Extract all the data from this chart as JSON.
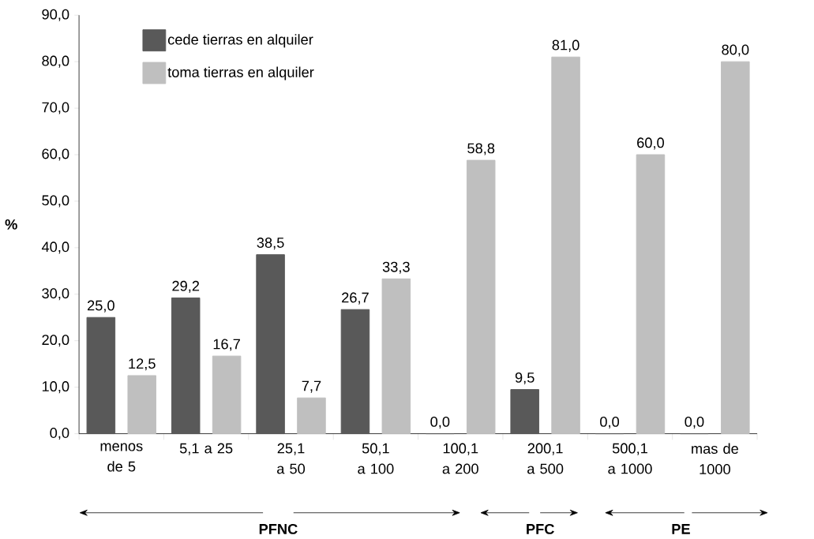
{
  "chart_data": {
    "type": "bar",
    "ylabel": "%",
    "categories": [
      "menos de 5",
      "5,1 a 25",
      "25,1 a 50",
      "50,1 a 100",
      "100,1 a 200",
      "200,1 a 500",
      "500,1 a 1000",
      "mas de 1000"
    ],
    "series": [
      {
        "name": "cede tierras en alquiler",
        "color": "#595959",
        "values": [
          25.0,
          29.2,
          38.5,
          26.7,
          0.0,
          9.5,
          0.0,
          0.0
        ],
        "value_labels": [
          "25,0",
          "29,2",
          "38,5",
          "26,7",
          "0,0",
          "9,5",
          "0,0",
          "0,0"
        ]
      },
      {
        "name": "toma tierras en alquiler",
        "color": "#bfbfbf",
        "values": [
          12.5,
          16.7,
          7.7,
          33.3,
          58.8,
          81.0,
          60.0,
          80.0
        ],
        "value_labels": [
          "12,5",
          "16,7",
          "7,7",
          "33,3",
          "58,8",
          "81,0",
          "60,0",
          "80,0"
        ]
      }
    ],
    "ylim": [
      0,
      90
    ],
    "yticks": [
      {
        "value": 0,
        "label": "0,0"
      },
      {
        "value": 10,
        "label": "10,0"
      },
      {
        "value": 20,
        "label": "20,0"
      },
      {
        "value": 30,
        "label": "30,0"
      },
      {
        "value": 40,
        "label": "40,0"
      },
      {
        "value": 50,
        "label": "50,0"
      },
      {
        "value": 60,
        "label": "60,0"
      },
      {
        "value": 70,
        "label": "70,0"
      },
      {
        "value": 80,
        "label": "80,0"
      },
      {
        "value": 90,
        "label": "90,0"
      }
    ],
    "grid": false,
    "legend": "top left",
    "annotations": [
      "PFNC",
      "PFC",
      "PE"
    ]
  }
}
